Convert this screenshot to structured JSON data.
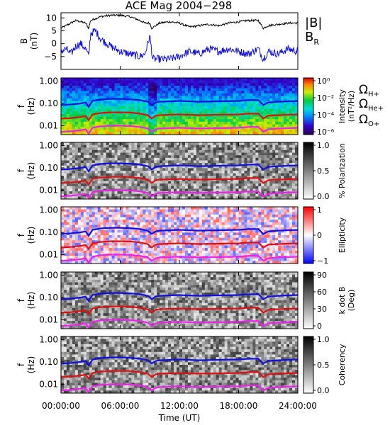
{
  "title": "ACE Mag 2004−298",
  "colors": {
    "black": "#000000",
    "blue": "#1010e0",
    "red": "#e01010",
    "magenta": "#ee22ee"
  },
  "chart_data": [
    {
      "type": "line",
      "panel": "magnetic-field",
      "ylabel": [
        "B",
        "(nT)"
      ],
      "ylim": [
        -10,
        12
      ],
      "yticks": [
        -5,
        0,
        5,
        10
      ],
      "ytick_labels": [
        "−5",
        "0",
        "5",
        "10"
      ],
      "series": [
        {
          "name": "|B|",
          "color": "#000000",
          "x": [
            0,
            0.5,
            1,
            1.5,
            2,
            2.5,
            2.8,
            3,
            4,
            5,
            6,
            7,
            8,
            8.5,
            9,
            9.2,
            10,
            11,
            12,
            13,
            14,
            15,
            16,
            17,
            18,
            19,
            20,
            20.5,
            21,
            22,
            23,
            24
          ],
          "y": [
            6,
            7,
            8,
            9,
            8.5,
            8,
            6,
            9,
            10.5,
            11,
            11,
            10.5,
            9,
            8,
            8,
            6,
            8,
            8.5,
            8,
            6.5,
            7,
            7.5,
            7,
            8,
            8.5,
            9,
            9,
            6,
            7,
            7.5,
            8,
            8
          ]
        },
        {
          "name": "BR",
          "color": "#1010e0",
          "x": [
            0,
            0.5,
            1,
            1.5,
            2,
            2.5,
            2.8,
            3,
            3.5,
            4,
            5,
            6,
            7,
            8,
            8.5,
            9,
            9.3,
            10,
            11,
            12,
            13,
            14,
            15,
            16,
            17,
            18,
            19,
            20,
            20.5,
            21,
            22,
            23,
            24
          ],
          "y": [
            -3,
            -2,
            -4,
            -1,
            0,
            -2,
            -5,
            4,
            5,
            2,
            -1,
            -3,
            -4,
            -5,
            -4,
            3,
            -6,
            -6,
            -6,
            -5,
            -3,
            -4,
            -2,
            -3,
            -2,
            -3,
            -4,
            -2,
            -6,
            -3,
            -4,
            -2,
            -3
          ]
        }
      ]
    },
    {
      "type": "heatmap",
      "panel": "intensity",
      "ylabel": [
        "f",
        "(Hz)"
      ],
      "ylim": [
        0.004,
        1.4
      ],
      "yscale": "log",
      "yticks": [
        1,
        0.1,
        0.01
      ],
      "ytick_labels": [
        "1.00",
        "0.10",
        "0.01"
      ],
      "colorbar": {
        "label": [
          "Intensity",
          "(nT²/Hz)"
        ],
        "scale": "log",
        "ticks": [
          1,
          0.01,
          0.0001,
          1e-06
        ],
        "tick_labels": [
          "10⁰",
          "10⁻²",
          "10⁻⁴",
          "10⁻⁶"
        ]
      },
      "legend": [
        {
          "name": "ΩH+",
          "color": "#1010e0"
        },
        {
          "name": "ΩHe+",
          "color": "#e01010"
        },
        {
          "name": "ΩO+",
          "color": "#ee22ee"
        }
      ]
    },
    {
      "type": "heatmap",
      "panel": "polarization",
      "ylabel": [
        "f",
        "(Hz)"
      ],
      "yticks": [
        1,
        0.1,
        0.01
      ],
      "ytick_labels": [
        "1.00",
        "0.10",
        "0.01"
      ],
      "colorbar": {
        "label": [
          "% Polarization"
        ],
        "ticks": [
          1,
          0.5,
          0
        ],
        "tick_labels": [
          "1.0",
          "0.5",
          "0.0"
        ]
      }
    },
    {
      "type": "heatmap",
      "panel": "ellipticity",
      "ylabel": [
        "f",
        "(Hz)"
      ],
      "yticks": [
        1,
        0.1,
        0.01
      ],
      "ytick_labels": [
        "1.00",
        "0.10",
        "0.01"
      ],
      "colorbar": {
        "label": [
          "Ellipticity"
        ],
        "ticks": [
          1,
          0,
          -1
        ],
        "tick_labels": [
          "1",
          "0",
          "−1"
        ]
      }
    },
    {
      "type": "heatmap",
      "panel": "k-dot-b",
      "ylabel": [
        "f",
        "(Hz)"
      ],
      "yticks": [
        1,
        0.1,
        0.01
      ],
      "ytick_labels": [
        "1.00",
        "0.10",
        "0.01"
      ],
      "colorbar": {
        "label": [
          "k dot B",
          "(Deg)"
        ],
        "ticks": [
          90,
          60,
          30,
          0
        ],
        "tick_labels": [
          "90",
          "60",
          "30",
          "0"
        ]
      }
    },
    {
      "type": "heatmap",
      "panel": "coherency",
      "ylabel": [
        "f",
        "(Hz)"
      ],
      "yticks": [
        1,
        0.1,
        0.01
      ],
      "ytick_labels": [
        "1.00",
        "0.10",
        "0.01"
      ],
      "colorbar": {
        "label": [
          "Coherency"
        ],
        "ticks": [
          1,
          0.5,
          0
        ],
        "tick_labels": [
          "1.0",
          "0.5",
          "0.0"
        ]
      }
    }
  ],
  "gyrofrequencies": {
    "x": [
      0,
      1,
      2,
      2.5,
      2.8,
      3.2,
      4,
      5,
      6,
      7,
      8,
      8.8,
      9.2,
      9.6,
      10,
      12,
      14,
      16,
      18,
      19,
      20,
      20.5,
      21,
      22,
      23,
      24
    ],
    "h_plus": [
      0.085,
      0.09,
      0.1,
      0.11,
      0.07,
      0.13,
      0.15,
      0.16,
      0.16,
      0.155,
      0.14,
      0.12,
      0.085,
      0.11,
      0.12,
      0.13,
      0.12,
      0.125,
      0.13,
      0.14,
      0.14,
      0.085,
      0.11,
      0.12,
      0.125,
      0.13
    ],
    "he_plus": [
      0.021,
      0.022,
      0.025,
      0.027,
      0.018,
      0.032,
      0.037,
      0.04,
      0.04,
      0.039,
      0.035,
      0.03,
      0.021,
      0.028,
      0.03,
      0.032,
      0.03,
      0.031,
      0.032,
      0.035,
      0.035,
      0.021,
      0.028,
      0.03,
      0.031,
      0.032
    ],
    "o_plus": [
      0.0053,
      0.0056,
      0.0063,
      0.0069,
      0.0044,
      0.0081,
      0.0094,
      0.01,
      0.01,
      0.0097,
      0.0088,
      0.0075,
      0.0053,
      0.0069,
      0.0075,
      0.0081,
      0.0075,
      0.0078,
      0.0081,
      0.0088,
      0.0088,
      0.0053,
      0.0069,
      0.0075,
      0.0078,
      0.0081
    ]
  },
  "x_axis": {
    "label": "Time (UT)",
    "ticks": [
      0,
      6,
      12,
      18,
      24
    ],
    "tick_labels": [
      "00:00:00",
      "06:00:00",
      "12:00:00",
      "18:00:00",
      "24:00:00"
    ]
  }
}
